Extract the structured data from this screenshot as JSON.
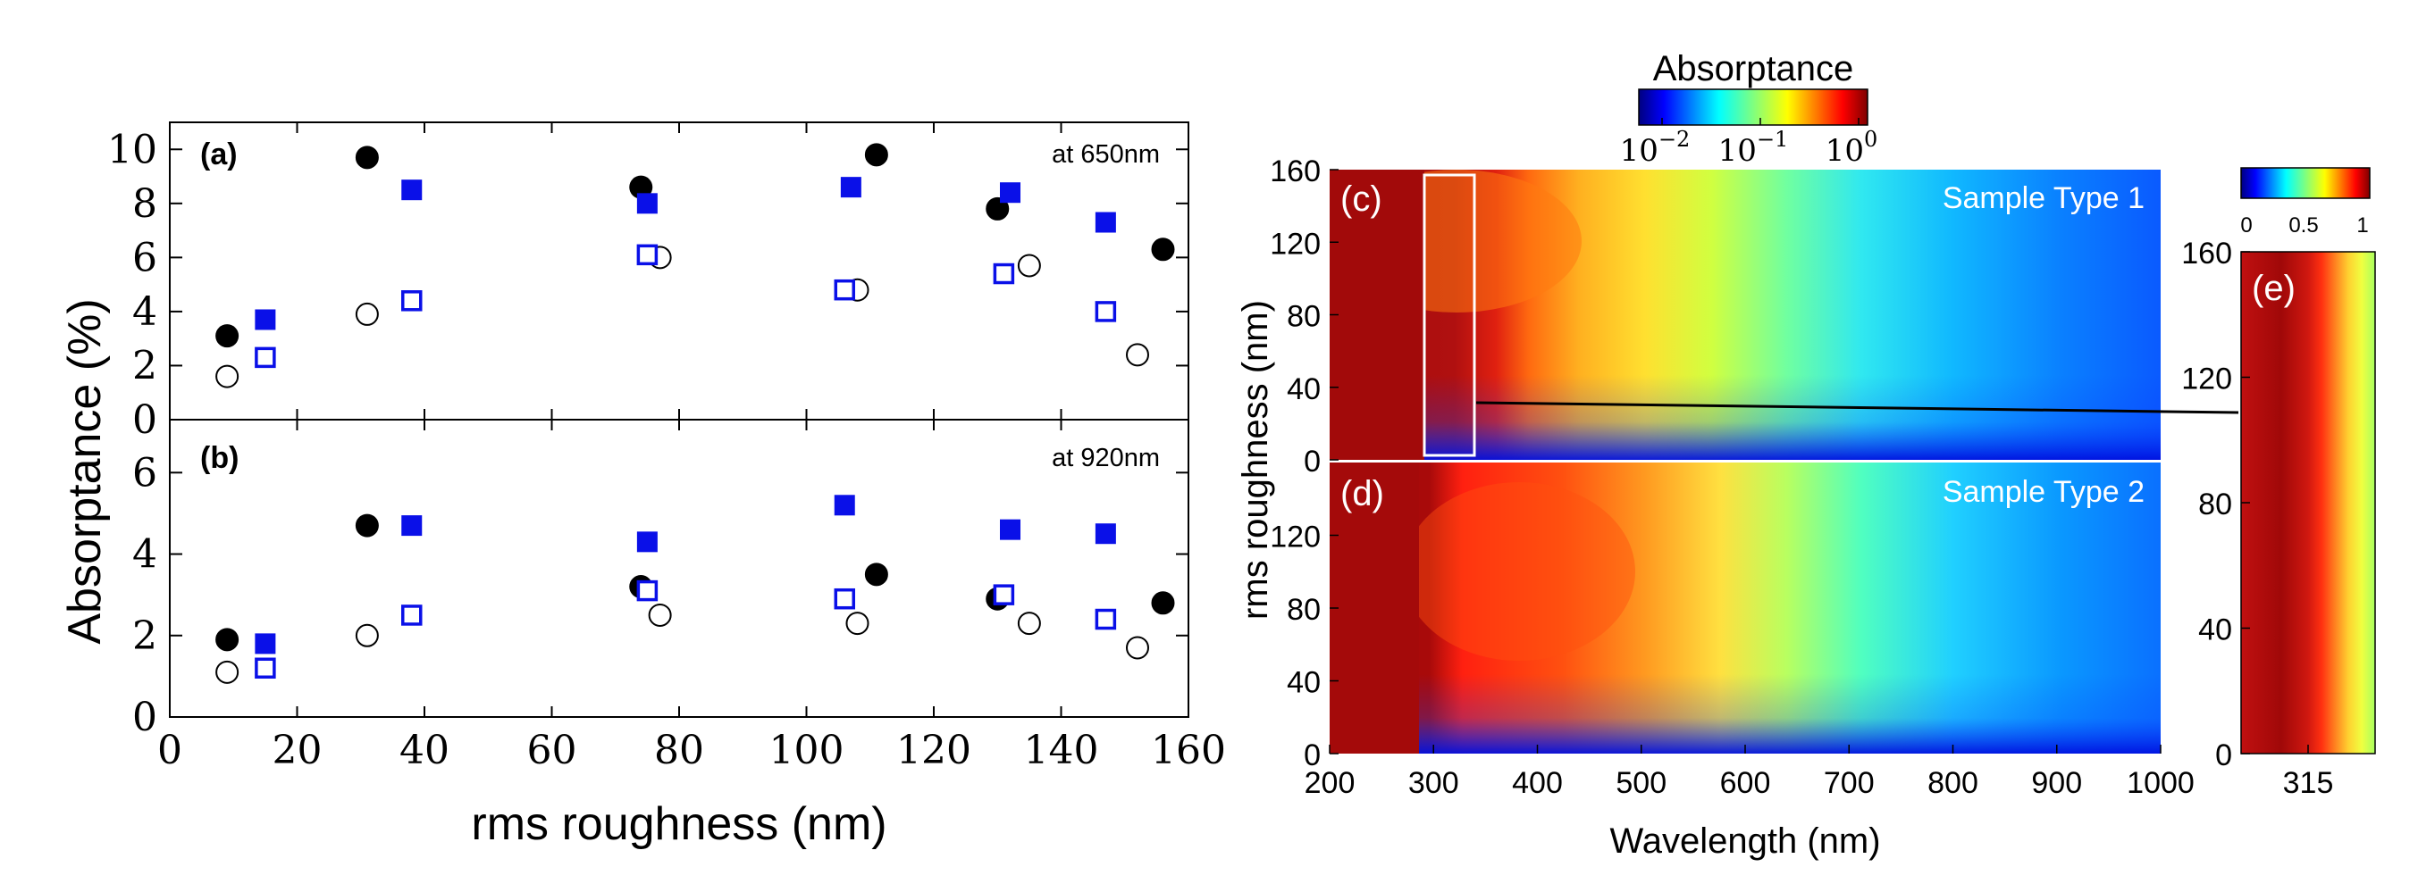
{
  "chart_data": [
    {
      "type": "scatter",
      "panel": "(a)",
      "annotation": "at 650nm",
      "xlim": [
        0,
        160
      ],
      "ylim": [
        0,
        11
      ],
      "xticks": [
        0,
        20,
        40,
        60,
        80,
        100,
        120,
        140,
        160
      ],
      "yticks": [
        0,
        2,
        4,
        6,
        8,
        10
      ],
      "series": [
        {
          "name": "filled circle",
          "marker": "circle",
          "filled": true,
          "color": "#000000",
          "x": [
            9,
            31,
            74,
            111,
            130,
            156
          ],
          "y": [
            3.1,
            9.7,
            8.6,
            9.8,
            7.8,
            6.3
          ]
        },
        {
          "name": "open circle",
          "marker": "circle",
          "filled": false,
          "color": "#000000",
          "x": [
            9,
            31,
            77,
            108,
            135,
            152
          ],
          "y": [
            1.6,
            3.9,
            6.0,
            4.8,
            5.7,
            2.4
          ]
        },
        {
          "name": "filled square",
          "marker": "square",
          "filled": true,
          "color": "#0a10e8",
          "x": [
            15,
            38,
            75,
            107,
            132,
            147
          ],
          "y": [
            3.7,
            8.5,
            8.0,
            8.6,
            8.4,
            7.3
          ]
        },
        {
          "name": "open square",
          "marker": "square",
          "filled": false,
          "color": "#0a10e8",
          "x": [
            15,
            38,
            75,
            106,
            131,
            147
          ],
          "y": [
            2.3,
            4.4,
            6.1,
            4.8,
            5.4,
            4.0
          ]
        }
      ]
    },
    {
      "type": "scatter",
      "panel": "(b)",
      "annotation": "at 920nm",
      "xlabel": "rms roughness (nm)",
      "xlim": [
        0,
        160
      ],
      "ylim": [
        0,
        7.3
      ],
      "xticks": [
        0,
        20,
        40,
        60,
        80,
        100,
        120,
        140,
        160
      ],
      "yticks": [
        0,
        2,
        4,
        6
      ],
      "series": [
        {
          "name": "filled circle",
          "marker": "circle",
          "filled": true,
          "color": "#000000",
          "x": [
            9,
            31,
            74,
            111,
            130,
            156
          ],
          "y": [
            1.9,
            4.7,
            3.2,
            3.5,
            2.9,
            2.8
          ]
        },
        {
          "name": "open circle",
          "marker": "circle",
          "filled": false,
          "color": "#000000",
          "x": [
            9,
            31,
            77,
            108,
            135,
            152
          ],
          "y": [
            1.1,
            2.0,
            2.5,
            2.3,
            2.3,
            1.7
          ]
        },
        {
          "name": "filled square",
          "marker": "square",
          "filled": true,
          "color": "#0a10e8",
          "x": [
            15,
            38,
            75,
            106,
            132,
            147
          ],
          "y": [
            1.8,
            4.7,
            4.3,
            5.2,
            4.6,
            4.5
          ]
        },
        {
          "name": "open square",
          "marker": "square",
          "filled": false,
          "color": "#0a10e8",
          "x": [
            15,
            38,
            75,
            106,
            131,
            147
          ],
          "y": [
            1.2,
            2.5,
            3.1,
            2.9,
            3.0,
            2.4
          ]
        }
      ]
    },
    {
      "type": "heatmap",
      "panel": "(c)",
      "annotation": "Sample Type 1",
      "xlim": [
        200,
        1000
      ],
      "ylim": [
        0,
        160
      ],
      "yticks": [
        0,
        40,
        80,
        120,
        160
      ],
      "color_scale": "log",
      "highlight_box": {
        "x_range": [
          290,
          340
        ],
        "y_range": [
          0,
          160
        ]
      }
    },
    {
      "type": "heatmap",
      "panel": "(d)",
      "annotation": "Sample Type 2",
      "xlabel": "Wavelength (nm)",
      "xlim": [
        200,
        1000
      ],
      "ylim": [
        0,
        160
      ],
      "xticks": [
        200,
        300,
        400,
        500,
        600,
        700,
        800,
        900,
        1000
      ],
      "yticks": [
        0,
        40,
        80,
        120
      ],
      "color_scale": "log"
    },
    {
      "type": "heatmap",
      "panel": "(e)",
      "xlim": [
        290,
        340
      ],
      "ylim": [
        0,
        160
      ],
      "xticks": [
        315
      ],
      "yticks": [
        0,
        40,
        80,
        120,
        160
      ],
      "color_scale": "linear"
    }
  ],
  "labels": {
    "left_ylabel": "Absorptance (%)",
    "right_ylabel": "rms roughness (nm)",
    "colorbar_log_title": "Absorptance",
    "colorbar_log_ticks": [
      {
        "base": "10",
        "exp": "−2"
      },
      {
        "base": "10",
        "exp": "−1"
      },
      {
        "base": "10",
        "exp": "0"
      }
    ],
    "colorbar_lin_ticks": [
      "0",
      "0.5",
      "1"
    ]
  },
  "colors": {
    "jet": [
      "#00007f",
      "#0000ff",
      "#007fff",
      "#00ffff",
      "#7fff7f",
      "#ffff00",
      "#ff7f00",
      "#ff0000",
      "#7f0000"
    ],
    "filled_marker": "#000000",
    "blue_marker": "#0a10e8"
  }
}
